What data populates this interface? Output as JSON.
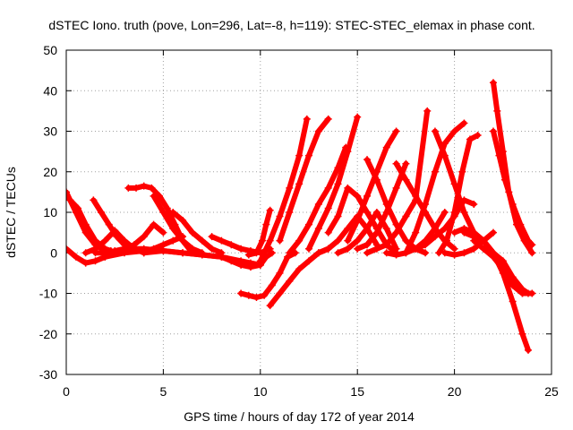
{
  "chart_data": {
    "type": "scatter",
    "title": "dSTEC Iono. truth (pove, Lon=296, Lat=-8, h=119): STEC-STEC_elemax in phase cont.",
    "xlabel": "GPS time / hours of day 172 of year 2014",
    "ylabel": "dSTEC  / TECUs",
    "xlim": [
      0,
      25
    ],
    "ylim": [
      -30,
      50
    ],
    "xticks": [
      0,
      5,
      10,
      15,
      20,
      25
    ],
    "yticks": [
      -30,
      -20,
      -10,
      0,
      10,
      20,
      30,
      40,
      50
    ],
    "grid": true,
    "marker": "plus",
    "color": "#ff0000",
    "series": [
      {
        "x": [
          0.0,
          0.5,
          1.0,
          1.5,
          2.0,
          2.5
        ],
        "y": [
          15,
          10,
          5,
          2,
          0.5,
          0
        ]
      },
      {
        "x": [
          0.0,
          0.5,
          1.0,
          1.5,
          2.0,
          2.5
        ],
        "y": [
          1,
          -1,
          -2.5,
          -2,
          -1,
          0
        ]
      },
      {
        "x": [
          0.2,
          0.6,
          1.0,
          1.5,
          2.0,
          2.3
        ],
        "y": [
          13,
          11,
          7,
          3,
          1,
          0.5
        ]
      },
      {
        "x": [
          1.0,
          1.5,
          2.0,
          2.5,
          3.0,
          3.5
        ],
        "y": [
          0,
          1,
          3,
          5.5,
          3,
          1
        ]
      },
      {
        "x": [
          1.4,
          1.8,
          2.2,
          2.6,
          3.0,
          3.5,
          4.0
        ],
        "y": [
          13,
          10,
          7,
          4,
          2,
          1,
          0
        ]
      },
      {
        "x": [
          1.5,
          2.0,
          2.5,
          3.0,
          3.5,
          4.0,
          4.5,
          5.0
        ],
        "y": [
          0,
          0,
          0.5,
          1,
          2,
          4,
          7,
          5
        ]
      },
      {
        "x": [
          2.0,
          3.0,
          4.0,
          4.5,
          5.0,
          5.5,
          6.0
        ],
        "y": [
          -1,
          0,
          0.5,
          1,
          2,
          3,
          4
        ]
      },
      {
        "x": [
          3.2,
          3.6,
          4.0,
          4.4,
          4.8,
          5.2,
          5.6,
          6.0,
          6.5
        ],
        "y": [
          16,
          16,
          16.5,
          16,
          14,
          11,
          7,
          3,
          0
        ]
      },
      {
        "x": [
          4.5,
          5.0,
          5.5,
          6.0,
          6.5,
          7.0
        ],
        "y": [
          14,
          10,
          6,
          3,
          1,
          0
        ]
      },
      {
        "x": [
          5.5,
          6.0,
          6.5,
          7.0,
          7.5,
          8.0
        ],
        "y": [
          10,
          8,
          5,
          3,
          1,
          0
        ]
      },
      {
        "x": [
          3.0,
          4.0,
          5.0,
          6.0,
          7.0,
          8.0
        ],
        "y": [
          1,
          1,
          0.5,
          0,
          -0.5,
          -1
        ]
      },
      {
        "x": [
          4.0,
          5.0,
          6.0,
          7.0,
          8.0,
          9.0,
          9.5,
          10.0
        ],
        "y": [
          0,
          0.5,
          0,
          -0.5,
          -1,
          -2,
          -2.5,
          -3
        ]
      },
      {
        "x": [
          7.5,
          8.0,
          8.5,
          9.0,
          9.5,
          10.0,
          10.5
        ],
        "y": [
          4,
          3,
          2,
          1,
          0.5,
          0,
          1
        ]
      },
      {
        "x": [
          8.0,
          8.5,
          9.0,
          9.5,
          10.0,
          10.3,
          10.6
        ],
        "y": [
          -1,
          -2,
          -3,
          -3.5,
          -3,
          -1,
          0
        ]
      },
      {
        "x": [
          9.0,
          9.4,
          9.8,
          10.2,
          10.6,
          11.0,
          11.4,
          11.8
        ],
        "y": [
          -10,
          -10.5,
          -11,
          -10.5,
          -8,
          -5,
          -1,
          0
        ]
      },
      {
        "x": [
          9.4,
          9.8,
          10.1,
          10.3,
          10.5
        ],
        "y": [
          -0.5,
          0,
          3,
          7,
          10.5
        ]
      },
      {
        "x": [
          10.0,
          10.5,
          11.0,
          11.5,
          12.0,
          12.4
        ],
        "y": [
          -2,
          3,
          9,
          16,
          24,
          33
        ]
      },
      {
        "x": [
          10.5,
          11.0,
          11.5,
          12.0,
          12.5,
          13.0,
          13.5
        ],
        "y": [
          -13,
          -10,
          -7,
          -4,
          -2,
          0,
          1
        ]
      },
      {
        "x": [
          11.0,
          11.5,
          12.0,
          12.5,
          13.0,
          13.5
        ],
        "y": [
          3,
          10,
          17,
          24,
          30,
          33
        ]
      },
      {
        "x": [
          11.5,
          12.0,
          12.5,
          13.0,
          13.5,
          14.0,
          14.4
        ],
        "y": [
          0,
          3,
          7,
          12,
          16,
          21,
          26
        ]
      },
      {
        "x": [
          12.5,
          13.0,
          13.5,
          14.0,
          14.5,
          15.0
        ],
        "y": [
          1,
          6,
          11,
          17,
          25,
          33.5
        ]
      },
      {
        "x": [
          13.0,
          13.5,
          14.0,
          14.5,
          15.0,
          15.5,
          16.0
        ],
        "y": [
          0,
          1,
          3,
          6,
          9,
          6,
          2
        ]
      },
      {
        "x": [
          13.5,
          14.0,
          14.5,
          15.0,
          15.5,
          16.0,
          16.5,
          17.0
        ],
        "y": [
          5,
          9,
          16,
          14,
          10,
          6,
          2,
          0
        ]
      },
      {
        "x": [
          14.0,
          14.5,
          15.0,
          15.5,
          16.0,
          16.5,
          17.0
        ],
        "y": [
          0,
          1,
          3,
          6,
          10,
          6,
          1
        ]
      },
      {
        "x": [
          14.5,
          15.0,
          15.5,
          16.0,
          16.5,
          17.0
        ],
        "y": [
          3,
          8,
          14,
          20,
          26,
          30
        ]
      },
      {
        "x": [
          15.0,
          15.5,
          16.0,
          16.5,
          17.0,
          17.5
        ],
        "y": [
          1,
          2,
          5,
          10,
          16,
          22
        ]
      },
      {
        "x": [
          15.5,
          16.0,
          16.5,
          17.0,
          17.5,
          18.0,
          18.5
        ],
        "y": [
          23,
          18,
          12,
          7,
          3,
          1,
          0
        ]
      },
      {
        "x": [
          15.5,
          16.0,
          16.5,
          17.0,
          17.5,
          18.0,
          18.6
        ],
        "y": [
          0,
          1,
          2,
          5,
          9,
          13,
          35
        ]
      },
      {
        "x": [
          16.5,
          17.0,
          17.5,
          18.0,
          18.5,
          19.0,
          19.5
        ],
        "y": [
          0,
          -0.5,
          0,
          1,
          3,
          6,
          10
        ]
      },
      {
        "x": [
          17.0,
          17.5,
          18.0,
          18.5,
          19.0,
          19.5,
          20.0
        ],
        "y": [
          22,
          18,
          14,
          10,
          6,
          3,
          1
        ]
      },
      {
        "x": [
          17.5,
          18.0,
          18.5,
          19.0,
          19.5,
          20.0,
          20.5
        ],
        "y": [
          0,
          5,
          12,
          20,
          27,
          30,
          32
        ]
      },
      {
        "x": [
          18.0,
          18.5,
          19.0,
          19.5,
          20.0,
          20.5,
          21.0
        ],
        "y": [
          1,
          2,
          4,
          6,
          9,
          13,
          12
        ]
      },
      {
        "x": [
          19.0,
          19.5,
          20.0,
          20.5,
          21.0
        ],
        "y": [
          30,
          24,
          17,
          10,
          5
        ]
      },
      {
        "x": [
          19.2,
          19.6,
          20.0,
          20.4,
          20.8,
          21.2
        ],
        "y": [
          0,
          3,
          10,
          20,
          28,
          29
        ]
      },
      {
        "x": [
          19.5,
          20.0,
          20.5,
          21.0,
          21.5,
          22.0
        ],
        "y": [
          0,
          -0.5,
          0,
          1,
          3,
          5
        ]
      },
      {
        "x": [
          20.0,
          20.5,
          21.0,
          21.5,
          22.0,
          22.5,
          23.0,
          23.5,
          23.8
        ],
        "y": [
          5,
          6,
          5,
          3,
          0,
          -5,
          -12,
          -20,
          -24
        ]
      },
      {
        "x": [
          20.5,
          21.0,
          21.5,
          22.0,
          22.5,
          23.0,
          23.5,
          24.0
        ],
        "y": [
          5,
          4,
          3,
          0,
          -4,
          -8,
          -10,
          -10
        ]
      },
      {
        "x": [
          21.0,
          21.5,
          22.0,
          22.5,
          23.0,
          23.5,
          24.0
        ],
        "y": [
          3,
          1,
          -1,
          -4,
          -8,
          -10,
          -10
        ]
      },
      {
        "x": [
          21.5,
          22.0,
          22.5,
          23.0,
          23.5,
          23.8
        ],
        "y": [
          1,
          0,
          -2,
          -6,
          -9,
          -10
        ]
      },
      {
        "x": [
          22.0,
          22.2,
          22.5,
          22.8,
          23.2,
          23.6,
          24.0
        ],
        "y": [
          42,
          35,
          25,
          15,
          7,
          3,
          0
        ]
      },
      {
        "x": [
          22.0,
          22.3,
          22.6,
          23.0,
          23.4,
          23.8,
          24.0
        ],
        "y": [
          30,
          24,
          18,
          12,
          7,
          3,
          2
        ]
      }
    ]
  }
}
